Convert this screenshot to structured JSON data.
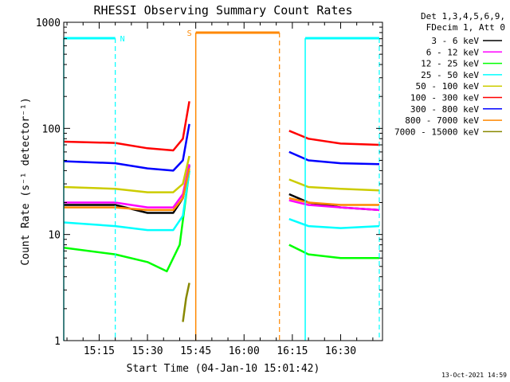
{
  "chart_data": {
    "type": "line",
    "title": "RHESSI Observing Summary Count Rates",
    "xlabel": "Start Time (04-Jan-10 15:01:42)",
    "ylabel": "Count Rate (s⁻¹ detector⁻¹)",
    "y_scale": "log",
    "ylim": [
      1,
      1000
    ],
    "xlim": [
      "15:04",
      "16:43"
    ],
    "x_ticks": [
      "15:15",
      "15:30",
      "15:45",
      "16:00",
      "16:15",
      "16:30"
    ],
    "y_ticks": [
      "1",
      "10",
      "100",
      "1000"
    ],
    "legend_header": [
      "Det 1,3,4,5,6,9,",
      "FDecim 1, Att 0"
    ],
    "legend_position": "top-right",
    "footer": "13-Oct-2021 14:59",
    "gap": [
      "15:45",
      "16:15"
    ],
    "series": [
      {
        "name": "3 - 6 keV",
        "color": "#000000",
        "x": [
          "15:04",
          "15:20",
          "15:30",
          "15:38",
          "15:41",
          "15:43",
          "16:14",
          "16:20",
          "16:30",
          "16:42"
        ],
        "values": [
          19,
          19,
          16,
          16,
          22,
          45,
          24,
          20,
          18,
          17
        ]
      },
      {
        "name": "6 - 12 keV",
        "color": "#ff00ff",
        "x": [
          "15:04",
          "15:20",
          "15:30",
          "15:38",
          "15:41",
          "15:43",
          "16:14",
          "16:20",
          "16:30",
          "16:42"
        ],
        "values": [
          20,
          20,
          18,
          18,
          24,
          46,
          21,
          19,
          18,
          17
        ]
      },
      {
        "name": "12 - 25 keV",
        "color": "#00ff00",
        "x": [
          "15:04",
          "15:20",
          "15:30",
          "15:36",
          "15:40",
          "15:43",
          "16:14",
          "16:20",
          "16:30",
          "16:42"
        ],
        "values": [
          7.5,
          6.5,
          5.5,
          4.5,
          8,
          40,
          8,
          6.5,
          6,
          6
        ]
      },
      {
        "name": "25 - 50 keV",
        "color": "#00ffff",
        "x": [
          "15:04",
          "15:20",
          "15:30",
          "15:38",
          "15:41",
          "15:43",
          "16:14",
          "16:20",
          "16:30",
          "16:42"
        ],
        "values": [
          13,
          12,
          11,
          11,
          15,
          40,
          14,
          12,
          11.5,
          12
        ]
      },
      {
        "name": "50 - 100 keV",
        "color": "#cccc00",
        "x": [
          "15:04",
          "15:20",
          "15:30",
          "15:38",
          "15:41",
          "15:43",
          "16:14",
          "16:20",
          "16:30",
          "16:42"
        ],
        "values": [
          28,
          27,
          25,
          25,
          30,
          55,
          33,
          28,
          27,
          26
        ]
      },
      {
        "name": "100 - 300 keV",
        "color": "#ff0000",
        "x": [
          "15:04",
          "15:20",
          "15:30",
          "15:38",
          "15:41",
          "15:43",
          "16:14",
          "16:20",
          "16:30",
          "16:42"
        ],
        "values": [
          75,
          73,
          65,
          62,
          80,
          180,
          95,
          80,
          72,
          70
        ]
      },
      {
        "name": "300 - 800 keV",
        "color": "#0000ff",
        "x": [
          "15:04",
          "15:20",
          "15:30",
          "15:38",
          "15:41",
          "15:43",
          "16:14",
          "16:20",
          "16:30",
          "16:42"
        ],
        "values": [
          49,
          47,
          42,
          40,
          50,
          110,
          60,
          50,
          47,
          46
        ]
      },
      {
        "name": "800 - 7000 keV",
        "color": "#ff8800",
        "x": [
          "15:04",
          "15:20",
          "15:30",
          "15:38",
          "15:41",
          "15:43",
          "16:14",
          "16:20",
          "16:30",
          "16:42"
        ],
        "values": [
          18,
          18,
          17,
          17,
          22,
          42,
          22,
          20,
          19,
          19
        ]
      },
      {
        "name": "7000 - 15000 keV",
        "color": "#888800",
        "x": [
          "15:41",
          "15:42",
          "15:43"
        ],
        "values": [
          1.5,
          2.5,
          3.5
        ]
      }
    ],
    "flags": [
      {
        "label": "N",
        "color": "#00ffff",
        "bars": [
          [
            "15:04",
            "15:20"
          ],
          [
            "16:19",
            "16:42"
          ]
        ]
      },
      {
        "label": "S",
        "color": "#ff8800",
        "bars": [
          [
            "15:45",
            "16:11"
          ]
        ]
      }
    ]
  }
}
